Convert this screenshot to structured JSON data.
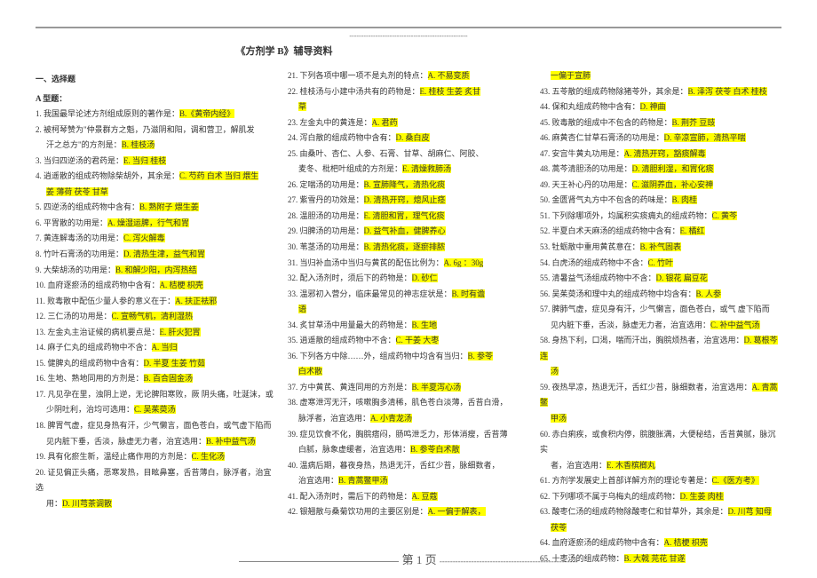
{
  "topDashes": "--------------------------------------------------",
  "title": "《方剂学 B》辅导资料",
  "sectionHead1": "一、选择题",
  "sectionHead2": "A 型题：",
  "col1": [
    {
      "n": "1.",
      "t": "我国最早论述方剂组成原则的著作是：",
      "a": "B.《黄帝内经》"
    },
    {
      "n": "2.",
      "t": "被柯琴赞为\"仲景群方之魁，乃滋阴和阳，调和营卫，解肌发"
    },
    {
      "n": "",
      "t": "汗之总方\"的方剂是：",
      "a": "B. 桂枝汤",
      "cont": true
    },
    {
      "n": "3.",
      "t": "当归四逆汤的君药是：",
      "a": "E. 当归 桂枝"
    },
    {
      "n": "4.",
      "t": "逍遥散的组成药物除柴胡外，其余是：",
      "a": "C. 芍药 白术 当归 煨生"
    },
    {
      "n": "",
      "t": "",
      "a": "姜 薄荷 茯苓 甘草",
      "cont": true,
      "allHl": true
    },
    {
      "n": "5.",
      "t": "四逆汤的组成药物中含有：",
      "a": "B. 熟附子 煨生姜"
    },
    {
      "n": "6.",
      "t": "平胃散的功用是：",
      "a": "A. 燥湿运脾，行气和胃"
    },
    {
      "n": "7.",
      "t": "黄连解毒汤的功用是：",
      "a": "C. 泻火解毒"
    },
    {
      "n": "8.",
      "t": "竹叶石膏汤的功用是：",
      "a": "D. 清热生津，益气和胃"
    },
    {
      "n": "9.",
      "t": "大柴胡汤的功用是：",
      "a": "B. 和解少阳，内泻热结"
    },
    {
      "n": "10.",
      "t": "血府逐瘀汤的组成药物中含有：",
      "a": "A. 桔梗 枳壳"
    },
    {
      "n": "11.",
      "t": "败毒散中配伍少量人参的意义在于：",
      "a": "A. 扶正祛邪"
    },
    {
      "n": "12.",
      "t": "三仁汤的功用是：",
      "a": "C. 宣畅气机，清利湿热"
    },
    {
      "n": "13.",
      "t": "左金丸主治证候的病机要点是：",
      "a": "E. 肝火犯胃"
    },
    {
      "n": "14.",
      "t": "麻子仁丸的组成药物中不含：",
      "a": "A. 当归"
    },
    {
      "n": "15.",
      "t": "健脾丸的组成药物中含有：",
      "a": "D. 半夏 生姜 竹茹"
    },
    {
      "n": "16.",
      "t": "生地、熟地同用的方剂是：",
      "a": "B. 百合固金汤"
    },
    {
      "n": "17.",
      "t": "凡见孕在里，浊阴上逆，无论脾阳寒败，厥 阴头痛，吐涎沫，或"
    },
    {
      "n": "",
      "t": "少阴吐利，治均可选用：",
      "a": "C. 吴茱萸汤",
      "cont": true
    },
    {
      "n": "18.",
      "t": "脾胃气虚，症见身热有汗，少气懒言，面色苍白，或气虚下陷而"
    },
    {
      "n": "",
      "t": "见内脏下垂，舌淡，脉虚无力者，治宜选用：",
      "a": "B. 补中益气汤",
      "cont": true
    },
    {
      "n": "19.",
      "t": "具有化瘀生新，温经止痛作用的方剂是：",
      "a": "C. 生化汤"
    },
    {
      "n": "20.",
      "t": "证见偏正头痛，恶寒发热，目眩鼻塞，舌苔薄白，脉浮者，治宜选"
    },
    {
      "n": "",
      "t": "用：",
      "a": "D. 川芎茶调散",
      "cont": true
    }
  ],
  "col2": [
    {
      "n": "21.",
      "t": "下列各项中哪一项不是丸剂的特点：",
      "a": "A. 不易变质"
    },
    {
      "n": "22.",
      "t": "桂枝汤与小建中汤共有的药物是：",
      "a": "E. 桂枝 生姜 炙甘"
    },
    {
      "n": "",
      "t": "",
      "a": "草",
      "cont": true,
      "allHl": true
    },
    {
      "n": "23.",
      "t": "左金丸中的黄连是：",
      "a": "A. 君药"
    },
    {
      "n": "24.",
      "t": "泻白散的组成药物中含有：",
      "a": "D. 桑白皮"
    },
    {
      "n": "25.",
      "t": "由桑叶、杏仁、人参、石膏、甘草、胡麻仁、阿胶、"
    },
    {
      "n": "",
      "t": "麦冬、枇杷叶组成的方剂是：",
      "a": "E. 清燥救肺汤",
      "cont": true
    },
    {
      "n": "26.",
      "t": "定喘汤的功用是：",
      "a": "B. 宣肺降气，清热化痰"
    },
    {
      "n": "27.",
      "t": "紫雪丹的功效是：",
      "a": "D. 清热开窍，熄风止痉"
    },
    {
      "n": "28.",
      "t": "温胆汤的功用是：",
      "a": "E. 清胆和胃，理气化痰"
    },
    {
      "n": "29.",
      "t": "归脾汤的功用是：",
      "a": "D. 益气补血，健脾养心"
    },
    {
      "n": "30.",
      "t": "苇茎汤的功用是：",
      "a": "B. 清热化痰，逐瘀排脓"
    },
    {
      "n": "31.",
      "t": "当归补血汤中当归与黄芪的配伍比例为：",
      "a": "A. 6g ：30g"
    },
    {
      "n": "32.",
      "t": "配入汤剂时，须后下的药物是：",
      "a": "D. 砂仁"
    },
    {
      "n": "33.",
      "t": "温邪初入营分，临床最常见的神志症状是：",
      "a": "B. 时有谵"
    },
    {
      "n": "",
      "t": "",
      "a": "语",
      "cont": true,
      "allHl": true
    },
    {
      "n": "34.",
      "t": "炙甘草汤中用量最大的药物是：",
      "a": "B. 生地"
    },
    {
      "n": "35.",
      "t": "逍遥散的组成药物中不含：",
      "a": "C. 干姜 大枣"
    },
    {
      "n": "36.",
      "t": "下列各方中除……外，组成药物中均含有当归：",
      "a": "B. 参苓"
    },
    {
      "n": "",
      "t": "",
      "a": "白术散",
      "cont": true,
      "allHl": true
    },
    {
      "n": "37.",
      "t": "方中黄芪、黄连同用的方剂是：",
      "a": "B. 半夏泻心汤"
    },
    {
      "n": "38.",
      "t": "虚寒泄泻无汗，咳嗽胸多清稀，肌色苍白淡薄，舌苔白滑，"
    },
    {
      "n": "",
      "t": "脉浮者，治宜选用：",
      "a": "A. 小青龙汤",
      "cont": true
    },
    {
      "n": "39.",
      "t": "症见饮食不化，胸脘痞闷，肠鸣泄乏力，形体消瘦，舌苔薄"
    },
    {
      "n": "",
      "t": "白腻，脉象虚缓者，治宜选用：",
      "a": "B. 参苓白术散",
      "cont": true
    },
    {
      "n": "40.",
      "t": "温病后期，暮夜身热，热退无汗，舌红少苔，脉细数者，"
    },
    {
      "n": "",
      "t": "治宜选用：",
      "a": "B. 青蒿鳖甲汤",
      "cont": true
    },
    {
      "n": "41.",
      "t": "配入汤剂时，需后下的药物是：",
      "a": "A. 豆蔻"
    },
    {
      "n": "42.",
      "t": "银翘散与桑菊饮功用的主要区别是：",
      "a": "A. 一偏于解表，"
    }
  ],
  "col3": [
    {
      "n": "",
      "t": "",
      "a": "一偏于宣肺",
      "cont": true,
      "allHl": true
    },
    {
      "n": "43.",
      "t": "五苓散的组成药物除猪苓外，其余是：",
      "a": "B. 泽泻 茯苓 白术 桂枝"
    },
    {
      "n": "44.",
      "t": "保和丸组成药物中含有：",
      "a": "D. 神曲"
    },
    {
      "n": "45.",
      "t": "败毒散的组成中不包含的药物是：",
      "a": "B. 荆芥 豆豉"
    },
    {
      "n": "46.",
      "t": "麻黄杏仁甘草石膏汤的功用是：",
      "a": "D. 辛凉宣肺，清热平喘"
    },
    {
      "n": "47.",
      "t": "安宫牛黄丸功用是：",
      "a": "A. 清热开窍，豁痰解毒"
    },
    {
      "n": "48.",
      "t": "蒿芩清胆汤的功用是：",
      "a": "D. 清胆利湿，和胃化痰"
    },
    {
      "n": "49.",
      "t": "天王补心丹的功用是：",
      "a": "C. 滋阴养血，补心安神"
    },
    {
      "n": "50.",
      "t": "金匮肾气丸方中不包含的药味是：",
      "a": "B. 肉桂"
    },
    {
      "n": "51.",
      "t": "下列除哪项外，均属积实痰痈丸的组成药物：",
      "a": "C. 黄芩"
    },
    {
      "n": "52.",
      "t": "半夏白术天麻汤的组成药物中含有：",
      "a": "E. 橘红"
    },
    {
      "n": "53.",
      "t": "牡蛎散中重用黄芪意在：",
      "a": "B. 补气固表"
    },
    {
      "n": "54.",
      "t": "白虎汤的组成药物中不含：",
      "a": "C. 竹叶"
    },
    {
      "n": "55.",
      "t": "清暑益气汤组成药物中不含：",
      "a": "D. 银花 扁豆花"
    },
    {
      "n": "56.",
      "t": "吴茱萸汤和理中丸的组成药物中均含有：",
      "a": "B. 人参"
    },
    {
      "n": "57.",
      "t": "脾肺气虚，症见身有汗，少气懒言，面色苍白，或气 虚下陷而"
    },
    {
      "n": "",
      "t": "见内脏下垂，舌淡，脉虚无力者，治宜选用：",
      "a": "C. 补中益气汤",
      "cont": true
    },
    {
      "n": "58.",
      "t": "身热下利，口渴，喘而汗出，胸脘烦热者，治宜选用：",
      "a": "D. 葛根芩连"
    },
    {
      "n": "",
      "t": "",
      "a": "汤",
      "cont": true,
      "allHl": true
    },
    {
      "n": "59.",
      "t": "夜热早凉，热退无汗，舌红少苔，脉细数者，治宜选用：",
      "a": "A. 青蒿鳖"
    },
    {
      "n": "",
      "t": "",
      "a": "甲汤",
      "cont": true,
      "allHl": true
    },
    {
      "n": "60.",
      "t": "赤白痢疾，或食积内停，脘腹胀满，大便秘结，舌苔黄腻，脉沉实"
    },
    {
      "n": "",
      "t": "者，治宜选用：",
      "a": "E. 木香槟榔丸",
      "cont": true
    },
    {
      "n": "61.",
      "t": "方剂学发展史上首部详解方剂的理论专著是：",
      "a": "C.《医方考》"
    },
    {
      "n": "62.",
      "t": "下列哪项不属于乌梅丸的组成药物：",
      "a": "D. 生姜 肉桂"
    },
    {
      "n": "63.",
      "t": "酸枣仁汤的组成药物除酸枣仁和甘草外，其余是：",
      "a": "D. 川芎 知母"
    },
    {
      "n": "",
      "t": "",
      "a": "茯苓",
      "cont": true,
      "allHl": true
    },
    {
      "n": "64.",
      "t": "血府逐瘀汤的组成药物中含有：",
      "a": "A. 桔梗 枳壳"
    },
    {
      "n": "65.",
      "t": "十枣汤的组成药物：",
      "a": "B. 大戟 芫花 甘遂"
    }
  ],
  "footerPage": "第 1 页",
  "footerDash": "----------------------------------------------------"
}
